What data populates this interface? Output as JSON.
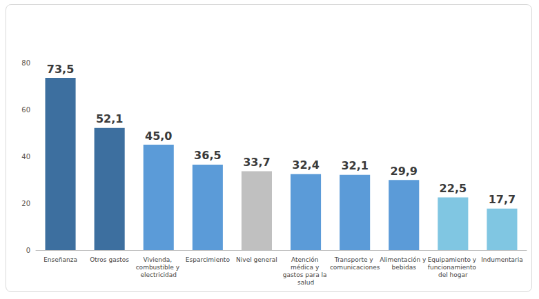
{
  "chart_data": {
    "type": "bar",
    "categories": [
      "Enseñanza",
      "Otros gastos",
      "Vivienda, combustible y electricidad",
      "Esparcimiento",
      "Nivel general",
      "Atención médica y gastos para la salud",
      "Transporte y comunicaciones",
      "Alimentación y bebidas",
      "Equipamiento y funcionamiento del hogar",
      "Indumentaria"
    ],
    "values": [
      73.5,
      52.1,
      45.0,
      36.5,
      33.7,
      32.4,
      32.1,
      29.9,
      22.5,
      17.7
    ],
    "value_labels": [
      "73,5",
      "52,1",
      "45,0",
      "36,5",
      "33,7",
      "32,4",
      "32,1",
      "29,9",
      "22,5",
      "17,7"
    ],
    "colors": [
      "#3d6f9f",
      "#3d6f9f",
      "#5b9bd8",
      "#5b9bd8",
      "#c0c0c0",
      "#5b9bd8",
      "#5b9bd8",
      "#5b9bd8",
      "#80c6e2",
      "#80c6e2"
    ],
    "ylim": [
      0,
      80
    ],
    "yticks": [
      0,
      20,
      40,
      60,
      80
    ],
    "grid": false,
    "data_labels": true
  }
}
